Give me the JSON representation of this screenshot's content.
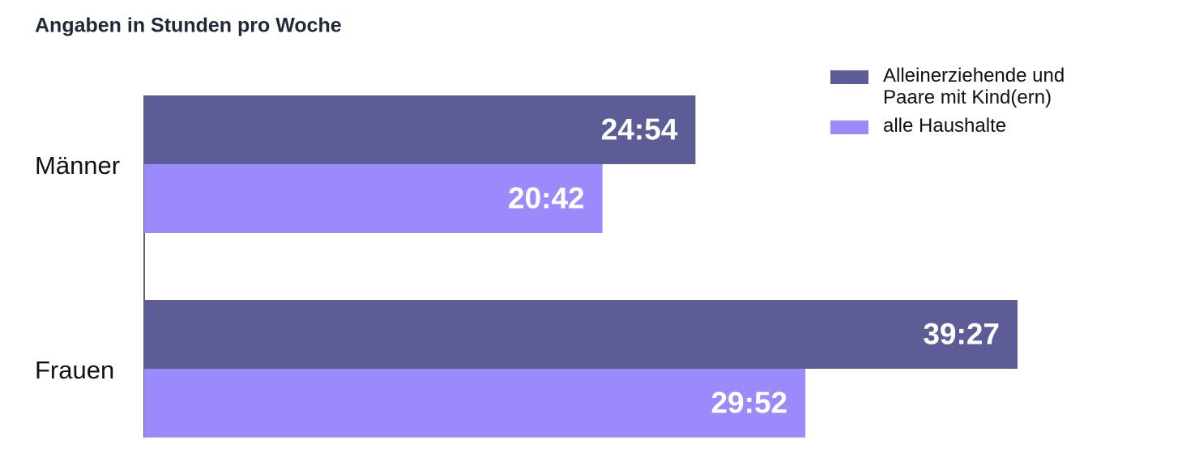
{
  "chart_data": {
    "type": "bar",
    "orientation": "horizontal",
    "title": "Angaben in Stunden pro Woche",
    "categories": [
      "Männer",
      "Frauen"
    ],
    "series": [
      {
        "name": "Alleinerziehende und Paare mit Kind(ern)",
        "color": "#5c5d96",
        "values": [
          24.9,
          39.45
        ],
        "value_labels": [
          "24:54",
          "39:27"
        ]
      },
      {
        "name": "alle Haushalte",
        "color": "#9b8afb",
        "values": [
          20.7,
          29.866667
        ],
        "value_labels": [
          "20:42",
          "29:52"
        ]
      }
    ],
    "legend": "top-right"
  }
}
